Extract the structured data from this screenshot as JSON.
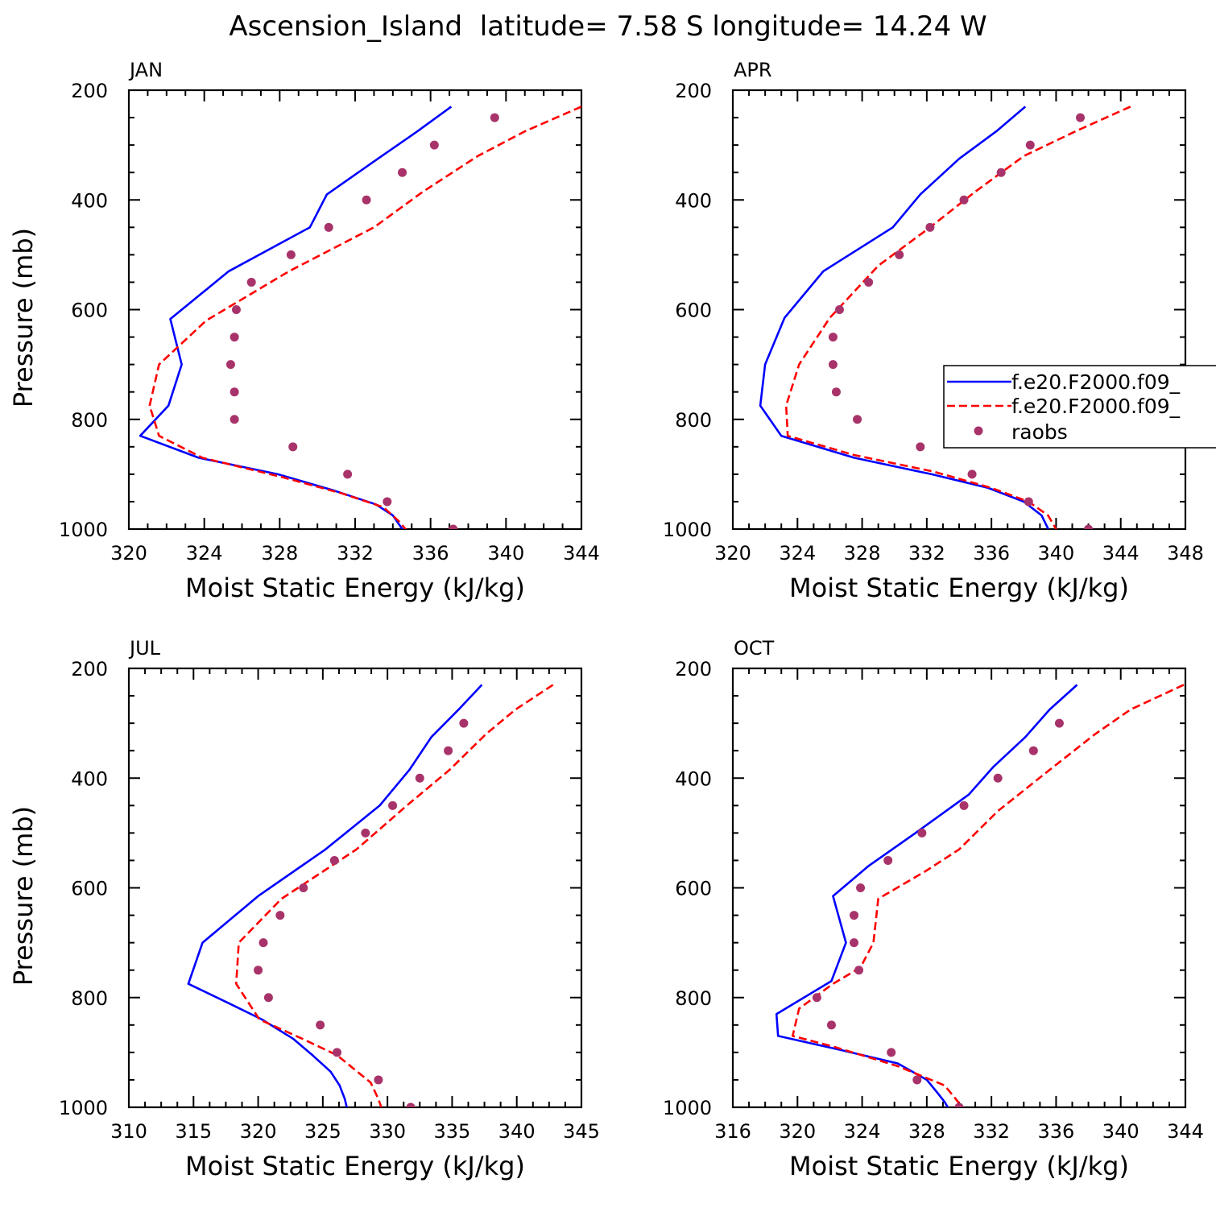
{
  "figure": {
    "title": "Ascension_Island  latitude= 7.58 S longitude= 14.24 W"
  },
  "legend": {
    "entries": [
      "f.e20.F2000.f09_",
      "f.e20.F2000.f09_",
      "raobs"
    ],
    "colors": [
      "#0000ff",
      "#ff0000",
      "#a8336a"
    ]
  },
  "chart_data": [
    {
      "type": "line",
      "panel": "JAN",
      "title": "JAN",
      "xlabel": "Moist Static Energy (kJ/kg)",
      "ylabel": "Pressure (mb)",
      "xlim": [
        320,
        344
      ],
      "ylim": [
        1000,
        200
      ],
      "y_reversed": true,
      "xticks": [
        "320",
        "324",
        "328",
        "332",
        "336",
        "340",
        "344"
      ],
      "yticks": [
        "200",
        "400",
        "600",
        "800",
        "1000"
      ],
      "legend": false,
      "series": [
        {
          "style": "solid",
          "color": "#0000ff",
          "x": [
            337.1,
            335.3,
            333.2,
            330.5,
            329.6,
            325.3,
            322.2,
            322.8,
            322.1,
            320.6,
            323.7,
            327.9,
            330.9,
            333.1,
            334.0,
            334.6
          ],
          "y": [
            230,
            275,
            325,
            390,
            450,
            530,
            617,
            700,
            775,
            830,
            870,
            900,
            930,
            955,
            975,
            1005
          ]
        },
        {
          "style": "dashed",
          "color": "#ff0000",
          "x": [
            344.0,
            341.0,
            338.5,
            335.6,
            333.0,
            328.5,
            324.1,
            321.6,
            321.1,
            321.6,
            323.9,
            328.1,
            331.3,
            333.5,
            334.3,
            334.8
          ],
          "y": [
            230,
            275,
            320,
            385,
            450,
            530,
            620,
            700,
            775,
            830,
            870,
            905,
            935,
            960,
            985,
            1005
          ]
        },
        {
          "style": "dots",
          "color": "#a8336a",
          "x": [
            339.4,
            336.2,
            334.5,
            332.6,
            330.6,
            328.6,
            326.5,
            325.7,
            325.6,
            325.4,
            325.6,
            325.6,
            328.7,
            331.6,
            333.7,
            337.2
          ],
          "y": [
            250,
            300,
            350,
            400,
            450,
            500,
            550,
            600,
            650,
            700,
            750,
            800,
            850,
            900,
            950,
            1000
          ]
        }
      ]
    },
    {
      "type": "line",
      "panel": "APR",
      "title": "APR",
      "xlabel": "Moist Static Energy (kJ/kg)",
      "ylabel": "",
      "xlim": [
        320,
        348
      ],
      "ylim": [
        1000,
        200
      ],
      "y_reversed": true,
      "xticks": [
        "320",
        "324",
        "328",
        "332",
        "336",
        "340",
        "344",
        "348"
      ],
      "yticks": [
        "200",
        "400",
        "600",
        "800",
        "1000"
      ],
      "legend": true,
      "series": [
        {
          "style": "solid",
          "color": "#0000ff",
          "x": [
            338.1,
            336.3,
            334.0,
            331.6,
            329.9,
            325.6,
            323.2,
            322.0,
            321.7,
            323.0,
            327.5,
            332.3,
            335.8,
            338.0,
            339.1,
            339.6
          ],
          "y": [
            230,
            275,
            325,
            390,
            450,
            530,
            615,
            700,
            775,
            830,
            870,
            900,
            925,
            950,
            975,
            1005
          ]
        },
        {
          "style": "dashed",
          "color": "#ff0000",
          "x": [
            344.6,
            341.2,
            338.0,
            335.0,
            332.2,
            329.0,
            326.0,
            324.1,
            323.3,
            323.4,
            327.5,
            332.4,
            336.0,
            338.3,
            339.5,
            340.1
          ],
          "y": [
            230,
            275,
            320,
            385,
            450,
            520,
            615,
            700,
            775,
            830,
            865,
            895,
            925,
            950,
            975,
            1005
          ]
        },
        {
          "style": "dots",
          "color": "#a8336a",
          "x": [
            341.5,
            338.4,
            336.6,
            334.3,
            332.2,
            330.3,
            328.4,
            326.6,
            326.2,
            326.2,
            326.4,
            327.7,
            331.6,
            334.8,
            338.3,
            342.0
          ],
          "y": [
            250,
            300,
            350,
            400,
            450,
            500,
            550,
            600,
            650,
            700,
            750,
            800,
            850,
            900,
            950,
            1000
          ]
        }
      ]
    },
    {
      "type": "line",
      "panel": "JUL",
      "title": "JUL",
      "xlabel": "Moist Static Energy (kJ/kg)",
      "ylabel": "Pressure (mb)",
      "xlim": [
        310,
        345
      ],
      "ylim": [
        1000,
        200
      ],
      "y_reversed": true,
      "xticks": [
        "310",
        "315",
        "320",
        "325",
        "330",
        "335",
        "340",
        "345"
      ],
      "yticks": [
        "200",
        "400",
        "600",
        "800",
        "1000"
      ],
      "legend": false,
      "series": [
        {
          "style": "solid",
          "color": "#0000ff",
          "x": [
            337.3,
            335.5,
            333.4,
            331.7,
            329.4,
            325.2,
            320.0,
            315.7,
            314.6,
            317.7,
            320.3,
            322.7,
            324.2,
            325.6,
            326.3,
            326.7,
            326.9
          ],
          "y": [
            230,
            275,
            325,
            385,
            450,
            530,
            615,
            700,
            775,
            810,
            840,
            875,
            905,
            935,
            960,
            985,
            1005
          ]
        },
        {
          "style": "dashed",
          "color": "#ff0000",
          "x": [
            342.8,
            339.9,
            337.6,
            334.8,
            331.5,
            327.6,
            321.8,
            318.5,
            318.3,
            320.1,
            323.4,
            326.1,
            328.7,
            329.3,
            329.6
          ],
          "y": [
            230,
            275,
            320,
            385,
            450,
            530,
            620,
            700,
            775,
            840,
            875,
            905,
            955,
            985,
            1005
          ]
        },
        {
          "style": "dots",
          "color": "#a8336a",
          "x": [
            335.9,
            334.7,
            332.5,
            330.4,
            328.3,
            325.9,
            323.5,
            321.7,
            320.4,
            320.0,
            320.8,
            324.8,
            326.1,
            329.3,
            331.8
          ],
          "y": [
            300,
            350,
            400,
            450,
            500,
            550,
            600,
            650,
            700,
            750,
            800,
            850,
            900,
            950,
            1000
          ]
        }
      ]
    },
    {
      "type": "line",
      "panel": "OCT",
      "title": "OCT",
      "xlabel": "Moist Static Energy (kJ/kg)",
      "ylabel": "",
      "xlim": [
        316,
        344
      ],
      "ylim": [
        1000,
        200
      ],
      "y_reversed": true,
      "xticks": [
        "316",
        "320",
        "324",
        "328",
        "332",
        "336",
        "340",
        "344"
      ],
      "yticks": [
        "200",
        "400",
        "600",
        "800",
        "1000"
      ],
      "legend": false,
      "series": [
        {
          "style": "solid",
          "color": "#0000ff",
          "x": [
            337.3,
            335.6,
            334.1,
            332.1,
            330.6,
            327.3,
            324.4,
            322.2,
            323.0,
            322.1,
            318.7,
            318.8,
            322.6,
            326.2,
            328.0,
            328.7,
            329.1,
            329.4
          ],
          "y": [
            230,
            275,
            325,
            380,
            430,
            500,
            560,
            615,
            700,
            770,
            830,
            870,
            895,
            920,
            950,
            975,
            990,
            1005
          ]
        },
        {
          "style": "dashed",
          "color": "#ff0000",
          "x": [
            343.9,
            340.6,
            338.4,
            335.6,
            332.4,
            330.0,
            327.9,
            325.0,
            324.7,
            323.9,
            322.2,
            320.1,
            319.7,
            322.3,
            326.2,
            329.1,
            329.8,
            330.3
          ],
          "y": [
            230,
            275,
            320,
            385,
            460,
            530,
            570,
            620,
            700,
            745,
            775,
            820,
            870,
            890,
            925,
            960,
            985,
            1005
          ]
        },
        {
          "style": "dots",
          "color": "#a8336a",
          "x": [
            336.2,
            334.6,
            332.4,
            330.3,
            327.7,
            325.6,
            323.9,
            323.5,
            323.5,
            323.8,
            321.2,
            322.1,
            325.8,
            327.4,
            330.0
          ],
          "y": [
            300,
            350,
            400,
            450,
            500,
            550,
            600,
            650,
            700,
            750,
            800,
            850,
            900,
            950,
            1000
          ]
        }
      ]
    }
  ]
}
